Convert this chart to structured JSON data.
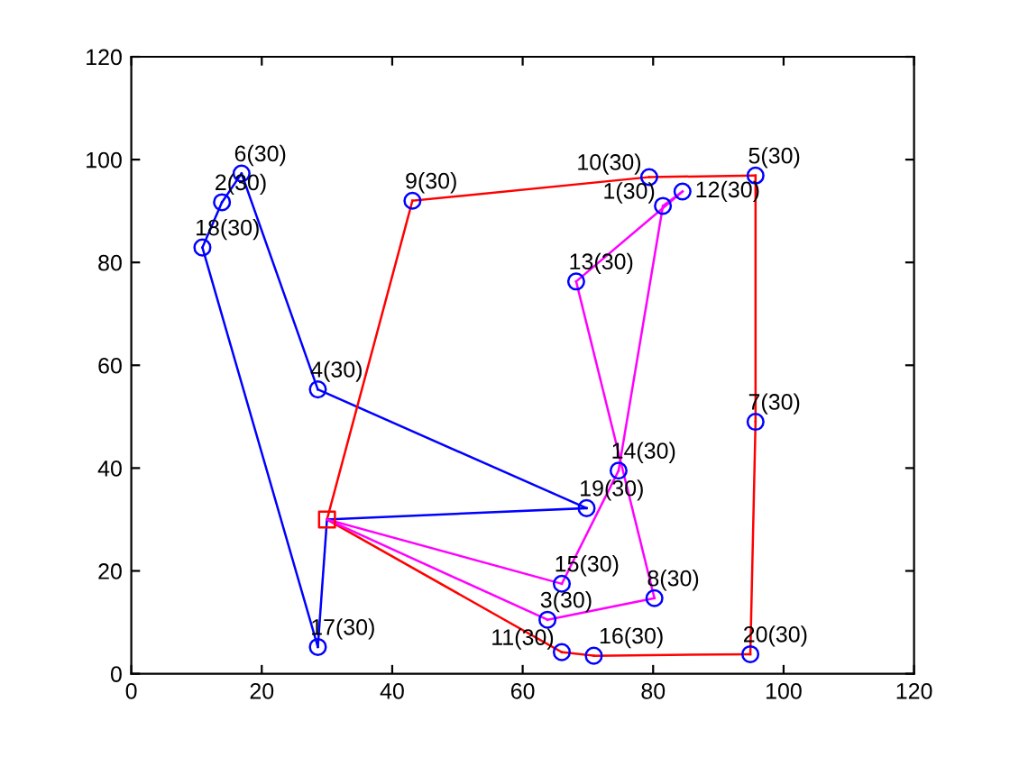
{
  "chart_data": {
    "type": "line",
    "xlim": [
      0,
      120
    ],
    "ylim": [
      0,
      120
    ],
    "xticks": [
      0,
      20,
      40,
      60,
      80,
      100,
      120
    ],
    "yticks": [
      0,
      20,
      40,
      60,
      80,
      100,
      120
    ],
    "grid": false,
    "legend": false,
    "series": [
      {
        "color": "#0000ff",
        "marker": "none",
        "x": [
          30,
          28.6
        ],
        "values": [
          30,
          5.2
        ]
      },
      {
        "color": "#0000ff",
        "marker": "none",
        "x": [
          28.6,
          10.9
        ],
        "values": [
          5.2,
          82.9
        ]
      },
      {
        "color": "#0000ff",
        "marker": "none",
        "x": [
          10.9,
          13.9
        ],
        "values": [
          82.9,
          91.7
        ]
      },
      {
        "color": "#0000ff",
        "marker": "none",
        "x": [
          13.9,
          16.9
        ],
        "values": [
          91.7,
          97.3
        ]
      },
      {
        "color": "#0000ff",
        "marker": "none",
        "x": [
          16.9,
          28.6
        ],
        "values": [
          97.3,
          55.3
        ]
      },
      {
        "color": "#0000ff",
        "marker": "none",
        "x": [
          28.6,
          69.8
        ],
        "values": [
          55.3,
          32.2
        ]
      },
      {
        "color": "#0000ff",
        "marker": "none",
        "x": [
          69.8,
          30
        ],
        "values": [
          32.2,
          30
        ]
      },
      {
        "color": "#ff0000",
        "marker": "none",
        "x": [
          30,
          43.1
        ],
        "values": [
          30,
          92.0
        ]
      },
      {
        "color": "#ff0000",
        "marker": "none",
        "x": [
          43.1,
          79.4
        ],
        "values": [
          92.0,
          96.6
        ]
      },
      {
        "color": "#ff0000",
        "marker": "none",
        "x": [
          79.4,
          95.7
        ],
        "values": [
          96.6,
          96.9
        ]
      },
      {
        "color": "#ff0000",
        "marker": "none",
        "x": [
          95.7,
          95.7
        ],
        "values": [
          96.9,
          49.0
        ]
      },
      {
        "color": "#ff0000",
        "marker": "none",
        "x": [
          95.7,
          94.9
        ],
        "values": [
          49.0,
          3.8
        ]
      },
      {
        "color": "#ff0000",
        "marker": "none",
        "x": [
          94.9,
          70.9
        ],
        "values": [
          3.8,
          3.5
        ]
      },
      {
        "color": "#ff0000",
        "marker": "none",
        "x": [
          70.9,
          66.0
        ],
        "values": [
          3.5,
          4.2
        ]
      },
      {
        "color": "#ff0000",
        "marker": "none",
        "x": [
          66.0,
          30
        ],
        "values": [
          4.2,
          30
        ]
      },
      {
        "color": "#ff00ff",
        "marker": "none",
        "x": [
          30,
          66.0
        ],
        "values": [
          30,
          17.5
        ]
      },
      {
        "color": "#ff00ff",
        "marker": "none",
        "x": [
          66.0,
          74.7
        ],
        "values": [
          17.5,
          39.5
        ]
      },
      {
        "color": "#ff00ff",
        "marker": "none",
        "x": [
          74.7,
          81.5
        ],
        "values": [
          39.5,
          91.0
        ]
      },
      {
        "color": "#ff00ff",
        "marker": "none",
        "x": [
          81.5,
          84.5
        ],
        "values": [
          91.0,
          93.8
        ]
      },
      {
        "color": "#ff00ff",
        "marker": "none",
        "x": [
          84.5,
          68.2
        ],
        "values": [
          93.8,
          76.3
        ]
      },
      {
        "color": "#ff00ff",
        "marker": "none",
        "x": [
          68.2,
          80.2
        ],
        "values": [
          76.3,
          14.7
        ]
      },
      {
        "color": "#ff00ff",
        "marker": "none",
        "x": [
          80.2,
          63.8
        ],
        "values": [
          14.7,
          10.5
        ]
      },
      {
        "color": "#ff00ff",
        "marker": "none",
        "x": [
          63.8,
          30
        ],
        "values": [
          10.5,
          30
        ]
      },
      {
        "type": "scatter",
        "color": "#0000ff",
        "marker": "circle",
        "x": [
          81.5,
          13.9,
          63.8,
          28.6,
          95.7,
          16.9,
          95.7,
          80.2,
          43.1,
          79.4,
          66.0,
          84.5,
          68.2,
          74.7,
          66.0,
          70.9,
          28.6,
          10.9,
          69.8,
          94.9
        ],
        "values": [
          91.0,
          91.7,
          10.5,
          55.3,
          96.9,
          97.3,
          49.0,
          14.7,
          92.0,
          96.6,
          4.2,
          93.8,
          76.3,
          39.5,
          17.5,
          3.5,
          5.2,
          82.9,
          32.2,
          3.8
        ]
      },
      {
        "type": "scatter",
        "color": "#ff0000",
        "marker": "square",
        "x": [
          30
        ],
        "values": [
          30
        ]
      }
    ],
    "annotations": [
      {
        "text": "1(30)",
        "x": 81.5,
        "y": 91.0
      },
      {
        "text": "2(30)",
        "x": 13.9,
        "y": 91.7
      },
      {
        "text": "3(30)",
        "x": 63.8,
        "y": 10.5
      },
      {
        "text": "4(30)",
        "x": 28.6,
        "y": 55.3
      },
      {
        "text": "5(30)",
        "x": 95.7,
        "y": 96.9
      },
      {
        "text": "6(30)",
        "x": 16.9,
        "y": 97.3
      },
      {
        "text": "7(30)",
        "x": 95.7,
        "y": 49.0
      },
      {
        "text": "8(30)",
        "x": 80.2,
        "y": 14.7
      },
      {
        "text": "9(30)",
        "x": 43.1,
        "y": 92.0
      },
      {
        "text": "10(30)",
        "x": 79.4,
        "y": 96.6
      },
      {
        "text": "11(30)",
        "x": 66.0,
        "y": 4.2
      },
      {
        "text": "12(30)",
        "x": 84.5,
        "y": 93.8
      },
      {
        "text": "13(30)",
        "x": 68.2,
        "y": 76.3
      },
      {
        "text": "14(30)",
        "x": 74.7,
        "y": 39.5
      },
      {
        "text": "15(30)",
        "x": 66.0,
        "y": 17.5
      },
      {
        "text": "16(30)",
        "x": 70.9,
        "y": 3.5
      },
      {
        "text": "17(30)",
        "x": 28.6,
        "y": 5.2
      },
      {
        "text": "18(30)",
        "x": 10.9,
        "y": 82.9
      },
      {
        "text": "19(30)",
        "x": 69.8,
        "y": 32.2
      },
      {
        "text": "20(30)",
        "x": 94.9,
        "y": 3.8
      }
    ]
  }
}
